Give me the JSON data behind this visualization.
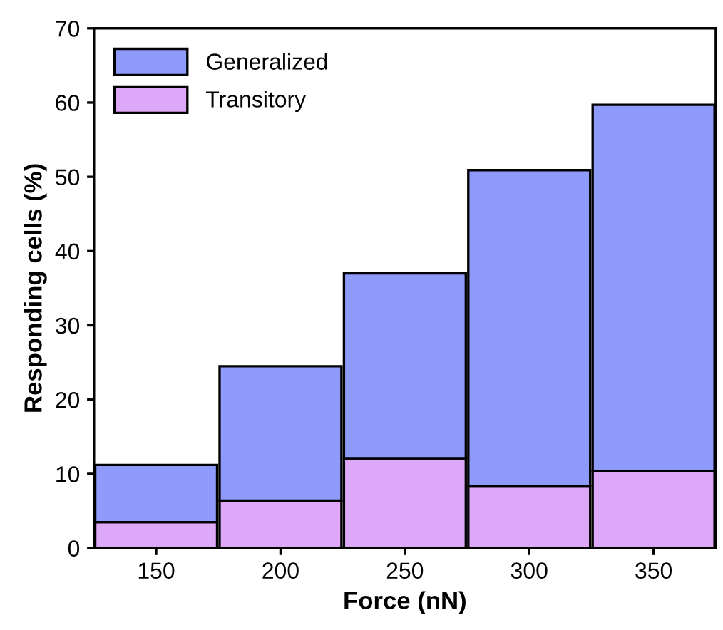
{
  "chart_data": {
    "type": "bar",
    "xlabel": "Force (nN)",
    "ylabel": "Responding cells (%)",
    "categories": [
      "150",
      "200",
      "250",
      "300",
      "350"
    ],
    "stacked": true,
    "series": [
      {
        "name": "Transitory",
        "color": "#dda8f8",
        "values": [
          3.5,
          6.4,
          12.1,
          8.3,
          10.4
        ]
      },
      {
        "name": "Generalized",
        "color": "#8e9bfa",
        "values": [
          7.7,
          18.1,
          24.9,
          42.6,
          49.3
        ]
      }
    ],
    "ylim": [
      0,
      70
    ],
    "yticks": [
      0,
      10,
      20,
      30,
      40,
      50,
      60,
      70
    ],
    "grid": false,
    "legend": "top left"
  }
}
